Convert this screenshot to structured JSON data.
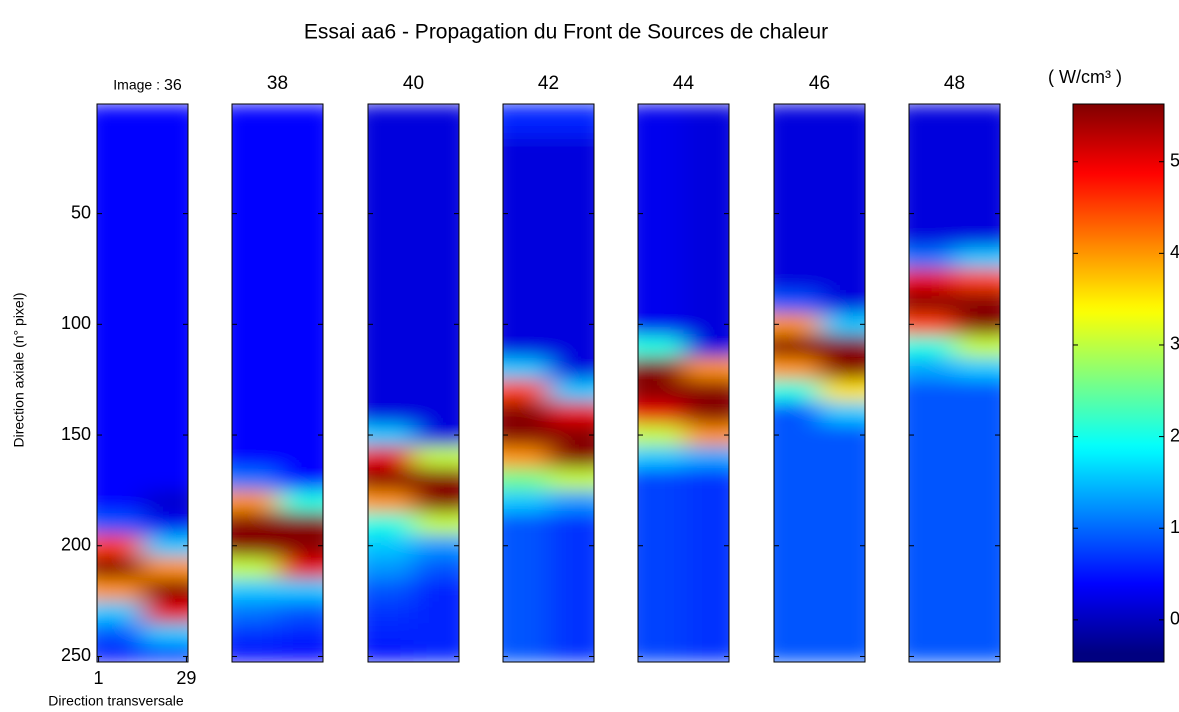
{
  "chart_data": {
    "type": "heatmap",
    "title": "Essai aa6 - Propagation du Front de Sources de chaleur",
    "x_label": "Direction transversale",
    "y_label": "Direction axiale (n° pixel)",
    "image_label": "Image :",
    "colorbar_label": "( W/cm³ )",
    "colormap": "jet",
    "x": [
      1,
      29
    ],
    "xlim": [
      0.5,
      29.5
    ],
    "xticks": [
      1,
      29
    ],
    "y": [
      10,
      20,
      30,
      40,
      50,
      60,
      70,
      80,
      90,
      100,
      110,
      120,
      130,
      140,
      150,
      160,
      170,
      180,
      190,
      200,
      210,
      220,
      230,
      240,
      250
    ],
    "ylim": [
      0.5,
      252.5
    ],
    "yticks": [
      50,
      100,
      150,
      200,
      250
    ],
    "clim": [
      -0.46,
      5.63
    ],
    "cticks": [
      0,
      1,
      2,
      3,
      4,
      5
    ],
    "panels": [
      {
        "label": "36",
        "values": [
          [
            0.3,
            0.3
          ],
          [
            0.3,
            0.3
          ],
          [
            0.3,
            0.3
          ],
          [
            0.3,
            0.3
          ],
          [
            0.3,
            0.3
          ],
          [
            0.3,
            0.3
          ],
          [
            0.3,
            0.3
          ],
          [
            0.3,
            0.3
          ],
          [
            0.3,
            0.3
          ],
          [
            0.3,
            0.3
          ],
          [
            0.3,
            0.3
          ],
          [
            0.3,
            0.3
          ],
          [
            0.3,
            0.3
          ],
          [
            0.3,
            0.3
          ],
          [
            0.3,
            0.3
          ],
          [
            0.3,
            0.3
          ],
          [
            0.3,
            0.3
          ],
          [
            0.3,
            0.0
          ],
          [
            0.8,
            0.2
          ],
          [
            4.5,
            1.5
          ],
          [
            5.6,
            4
          ],
          [
            4,
            5.6
          ],
          [
            1.5,
            5
          ],
          [
            0.8,
            1.5
          ],
          [
            0.3,
            0.5
          ]
        ]
      },
      {
        "label": "38",
        "values": [
          [
            0.3,
            0.3
          ],
          [
            0.3,
            0.3
          ],
          [
            0.3,
            0.3
          ],
          [
            0.3,
            0.3
          ],
          [
            0.3,
            0.3
          ],
          [
            0.3,
            0.3
          ],
          [
            0.3,
            0.3
          ],
          [
            0.3,
            0.3
          ],
          [
            0.3,
            0.3
          ],
          [
            0.3,
            0.3
          ],
          [
            0.3,
            0.3
          ],
          [
            0.3,
            0.3
          ],
          [
            0.3,
            0.3
          ],
          [
            0.3,
            0.3
          ],
          [
            0.3,
            0.3
          ],
          [
            0.3,
            0.3
          ],
          [
            1,
            0.3
          ],
          [
            4,
            2
          ],
          [
            5.6,
            5.6
          ],
          [
            5.6,
            5.6
          ],
          [
            3,
            5
          ],
          [
            1.5,
            1.5
          ],
          [
            1,
            0.8
          ],
          [
            0.6,
            0.5
          ],
          [
            0.3,
            0.3
          ]
        ]
      },
      {
        "label": "40",
        "values": [
          [
            0.1,
            0.1
          ],
          [
            0.1,
            0.1
          ],
          [
            0.1,
            0.1
          ],
          [
            0.1,
            0.1
          ],
          [
            0.1,
            0.1
          ],
          [
            0.1,
            0.1
          ],
          [
            0.1,
            0.1
          ],
          [
            0.1,
            0.1
          ],
          [
            0.1,
            0.1
          ],
          [
            0.1,
            0.1
          ],
          [
            0.1,
            0.1
          ],
          [
            0.1,
            0.1
          ],
          [
            0.1,
            0.1
          ],
          [
            0.1,
            0.1
          ],
          [
            1.5,
            0.1
          ],
          [
            5,
            3
          ],
          [
            5.6,
            5.6
          ],
          [
            4,
            5.6
          ],
          [
            2,
            3
          ],
          [
            1.5,
            1.2
          ],
          [
            1.2,
            0.8
          ],
          [
            0.8,
            0.5
          ],
          [
            0.6,
            0.5
          ],
          [
            0.5,
            0.5
          ],
          [
            0.4,
            0.5
          ]
        ]
      },
      {
        "label": "42",
        "values": [
          [
            0.5,
            0.5
          ],
          [
            0.1,
            0.1
          ],
          [
            0.1,
            0.1
          ],
          [
            0.1,
            0.1
          ],
          [
            0.1,
            0.1
          ],
          [
            0.1,
            0.1
          ],
          [
            0.1,
            0.1
          ],
          [
            0.1,
            0.1
          ],
          [
            0.1,
            0.1
          ],
          [
            0.1,
            0.1
          ],
          [
            0.1,
            0.1
          ],
          [
            1.5,
            0.1
          ],
          [
            4.5,
            1.5
          ],
          [
            5.6,
            5
          ],
          [
            5.6,
            5.6
          ],
          [
            4,
            5.6
          ],
          [
            2.5,
            3
          ],
          [
            1.5,
            1.2
          ],
          [
            0.8,
            0.6
          ],
          [
            0.8,
            0.6
          ],
          [
            0.8,
            0.6
          ],
          [
            0.8,
            0.6
          ],
          [
            0.8,
            0.6
          ],
          [
            0.8,
            0.6
          ],
          [
            0.8,
            0.6
          ]
        ]
      },
      {
        "label": "44",
        "values": [
          [
            0.2,
            0.1
          ],
          [
            0.2,
            0.1
          ],
          [
            0.2,
            0.1
          ],
          [
            0.2,
            0.1
          ],
          [
            0.2,
            0.1
          ],
          [
            0.2,
            0.1
          ],
          [
            0.2,
            0.1
          ],
          [
            0.2,
            0.1
          ],
          [
            0.2,
            0.1
          ],
          [
            0.2,
            0.1
          ],
          [
            2,
            0.1
          ],
          [
            5.6,
            4
          ],
          [
            5.6,
            5.6
          ],
          [
            5,
            5.6
          ],
          [
            3,
            4
          ],
          [
            1.5,
            1.3
          ],
          [
            0.7,
            0.6
          ],
          [
            0.7,
            0.6
          ],
          [
            0.7,
            0.6
          ],
          [
            0.7,
            0.6
          ],
          [
            0.7,
            0.6
          ],
          [
            0.7,
            0.6
          ],
          [
            0.7,
            0.6
          ],
          [
            0.7,
            0.6
          ],
          [
            0.7,
            0.6
          ]
        ]
      },
      {
        "label": "46",
        "values": [
          [
            0.1,
            0.1
          ],
          [
            0.1,
            0.1
          ],
          [
            0.1,
            0.1
          ],
          [
            0.1,
            0.1
          ],
          [
            0.1,
            0.1
          ],
          [
            0.1,
            0.1
          ],
          [
            0.1,
            0.1
          ],
          [
            0.1,
            0.1
          ],
          [
            0.8,
            0.1
          ],
          [
            4,
            1.5
          ],
          [
            5.6,
            5.6
          ],
          [
            4,
            5.6
          ],
          [
            2,
            3.5
          ],
          [
            0.8,
            1.5
          ],
          [
            0.8,
            0.8
          ],
          [
            0.8,
            0.8
          ],
          [
            0.8,
            0.8
          ],
          [
            0.8,
            0.8
          ],
          [
            0.8,
            0.8
          ],
          [
            0.8,
            0.8
          ],
          [
            0.8,
            0.8
          ],
          [
            0.8,
            0.8
          ],
          [
            0.8,
            0.8
          ],
          [
            0.8,
            0.8
          ],
          [
            0.8,
            0.8
          ]
        ]
      },
      {
        "label": "48",
        "values": [
          [
            0.1,
            0.1
          ],
          [
            0.1,
            0.1
          ],
          [
            0.1,
            0.1
          ],
          [
            0.1,
            0.1
          ],
          [
            0.1,
            0.1
          ],
          [
            0.1,
            0.1
          ],
          [
            1,
            1.5
          ],
          [
            5,
            4.5
          ],
          [
            5.6,
            5.6
          ],
          [
            4.5,
            5.6
          ],
          [
            2,
            3
          ],
          [
            1.3,
            1.5
          ],
          [
            0.8,
            0.8
          ],
          [
            0.8,
            0.8
          ],
          [
            0.8,
            0.8
          ],
          [
            0.8,
            0.8
          ],
          [
            0.8,
            0.8
          ],
          [
            0.8,
            0.8
          ],
          [
            0.8,
            0.8
          ],
          [
            0.8,
            0.8
          ],
          [
            0.8,
            0.8
          ],
          [
            0.8,
            0.8
          ],
          [
            0.8,
            0.8
          ],
          [
            0.8,
            0.8
          ],
          [
            0.8,
            0.8
          ]
        ]
      }
    ]
  }
}
